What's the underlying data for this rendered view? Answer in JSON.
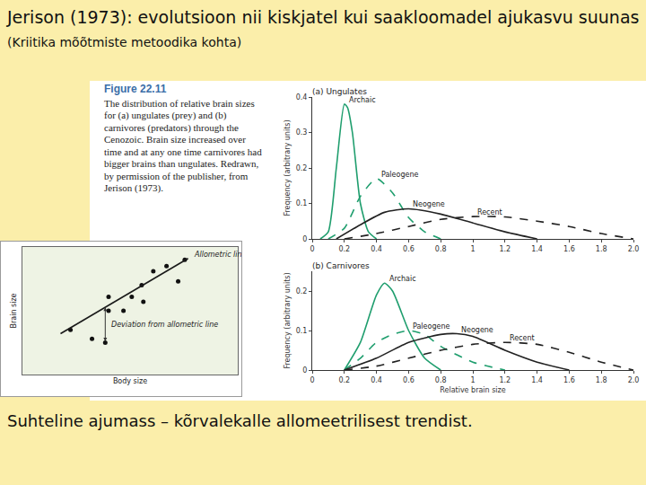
{
  "header": {
    "title": "Jerison (1973): evolutsioon nii kiskjatel kui saakloomadel ajukasvu suunas",
    "title_note": "(Kriitika mõõtmiste metoodika kohta)"
  },
  "caption": {
    "label": "Figure 22.11",
    "text": "The distribution of relative brain sizes for (a) ungulates (prey) and (b) carnivores (predators) through the Cenozoic. Brain size increased over time and at any one time carnivores had bigger brains than ungulates. Redrawn, by permission of the publisher, from Jerison (1973)."
  },
  "footer": "Suhteline ajumass – kõrvalekalle allomeetrilisest trendist.",
  "chart_data": [
    {
      "type": "scatter",
      "x_label": "Body size",
      "y_label": "Brain size",
      "tick_labels": false,
      "xlim": [
        0,
        13
      ],
      "ylim": [
        0,
        10
      ],
      "annotations": [
        "Deviation from allometric line"
      ],
      "series": [
        {
          "type": "scatter",
          "color": "#111111",
          "marker": "circle",
          "x": [
            2.9,
            4.2,
            5.0,
            5.2,
            5.2,
            6.1,
            6.6,
            7.2,
            7.3,
            7.9,
            8.7,
            9.4,
            9.8
          ],
          "values": [
            3.5,
            2.8,
            2.5,
            6.1,
            5.0,
            5.0,
            6.1,
            7.0,
            5.7,
            8.1,
            8.5,
            7.3,
            9.0
          ]
        },
        {
          "name": "Allometric line",
          "type": "line",
          "color": "#1a1a1a",
          "line_style": "solid",
          "x": [
            2.3,
            10.0
          ],
          "values": [
            3.2,
            9.1
          ]
        }
      ]
    },
    {
      "type": "line",
      "title": "(a) Ungulates",
      "y_label": "Frequency (arbitrary units)",
      "xlim": [
        0,
        2
      ],
      "ylim": [
        0,
        0.4
      ],
      "xticks": [
        0,
        0.2,
        0.4,
        0.6,
        0.8,
        1,
        1.2,
        1.4,
        1.6,
        1.8,
        {
          "value": 2,
          "label": "2.0"
        }
      ],
      "yticks": [
        0,
        0.1,
        0.2,
        0.3,
        0.4
      ],
      "series": [
        {
          "name": "Archaic",
          "color": "#1f9e6e",
          "line_style": "solid",
          "x": [
            0.05,
            0.1,
            0.15,
            0.2,
            0.22,
            0.25,
            0.3,
            0.35,
            0.4
          ],
          "values": [
            0,
            0.02,
            0.2,
            0.38,
            0.37,
            0.3,
            0.1,
            0.02,
            0
          ]
        },
        {
          "name": "Paleogene",
          "color": "#1f9e6e",
          "line_style": "dashed",
          "x": [
            0.1,
            0.2,
            0.3,
            0.4,
            0.5,
            0.6,
            0.7,
            0.8
          ],
          "values": [
            0,
            0.03,
            0.12,
            0.17,
            0.13,
            0.06,
            0.02,
            0
          ]
        },
        {
          "name": "Neogene",
          "color": "#222222",
          "line_style": "solid",
          "x": [
            0.15,
            0.3,
            0.45,
            0.6,
            0.8,
            1.0,
            1.2,
            1.4
          ],
          "values": [
            0,
            0.04,
            0.075,
            0.085,
            0.07,
            0.045,
            0.02,
            0
          ]
        },
        {
          "name": "Recent",
          "color": "#222222",
          "line_style": "dashed",
          "x": [
            0.2,
            0.4,
            0.6,
            0.8,
            1.0,
            1.2,
            1.4,
            1.6,
            1.8,
            2.0
          ],
          "values": [
            0,
            0.015,
            0.035,
            0.055,
            0.063,
            0.062,
            0.05,
            0.035,
            0.015,
            0
          ]
        }
      ]
    },
    {
      "type": "line",
      "title": "(b) Carnivores",
      "x_label": "Relative brain size",
      "y_label": "Frequency (arbitrary units)",
      "xlim": [
        0,
        2
      ],
      "ylim": [
        0,
        0.25
      ],
      "xticks": [
        0,
        0.2,
        0.4,
        0.6,
        0.8,
        1,
        1.2,
        1.4,
        1.6,
        1.8,
        {
          "value": 2,
          "label": "2.0"
        }
      ],
      "yticks": [
        0,
        0.1,
        0.2
      ],
      "series": [
        {
          "name": "Archaic",
          "color": "#1f9e6e",
          "line_style": "solid",
          "x": [
            0.2,
            0.3,
            0.4,
            0.45,
            0.5,
            0.6,
            0.7,
            0.8
          ],
          "values": [
            0,
            0.07,
            0.19,
            0.22,
            0.2,
            0.1,
            0.03,
            0
          ]
        },
        {
          "name": "Paleogene",
          "color": "#1f9e6e",
          "line_style": "dashed",
          "x": [
            0.2,
            0.3,
            0.4,
            0.5,
            0.6,
            0.7,
            0.8,
            1.0,
            1.2
          ],
          "values": [
            0,
            0.03,
            0.07,
            0.09,
            0.1,
            0.09,
            0.06,
            0.02,
            0
          ]
        },
        {
          "name": "Neogene",
          "color": "#222222",
          "line_style": "solid",
          "x": [
            0.2,
            0.4,
            0.6,
            0.8,
            0.9,
            1.0,
            1.2,
            1.4,
            1.6
          ],
          "values": [
            0,
            0.03,
            0.07,
            0.09,
            0.092,
            0.085,
            0.05,
            0.02,
            0
          ]
        },
        {
          "name": "Recent",
          "color": "#222222",
          "line_style": "dashed",
          "x": [
            0.2,
            0.4,
            0.6,
            0.8,
            1.0,
            1.2,
            1.4,
            1.6,
            1.8,
            2.0
          ],
          "values": [
            0,
            0.01,
            0.03,
            0.05,
            0.065,
            0.07,
            0.065,
            0.045,
            0.02,
            0
          ]
        }
      ]
    }
  ]
}
